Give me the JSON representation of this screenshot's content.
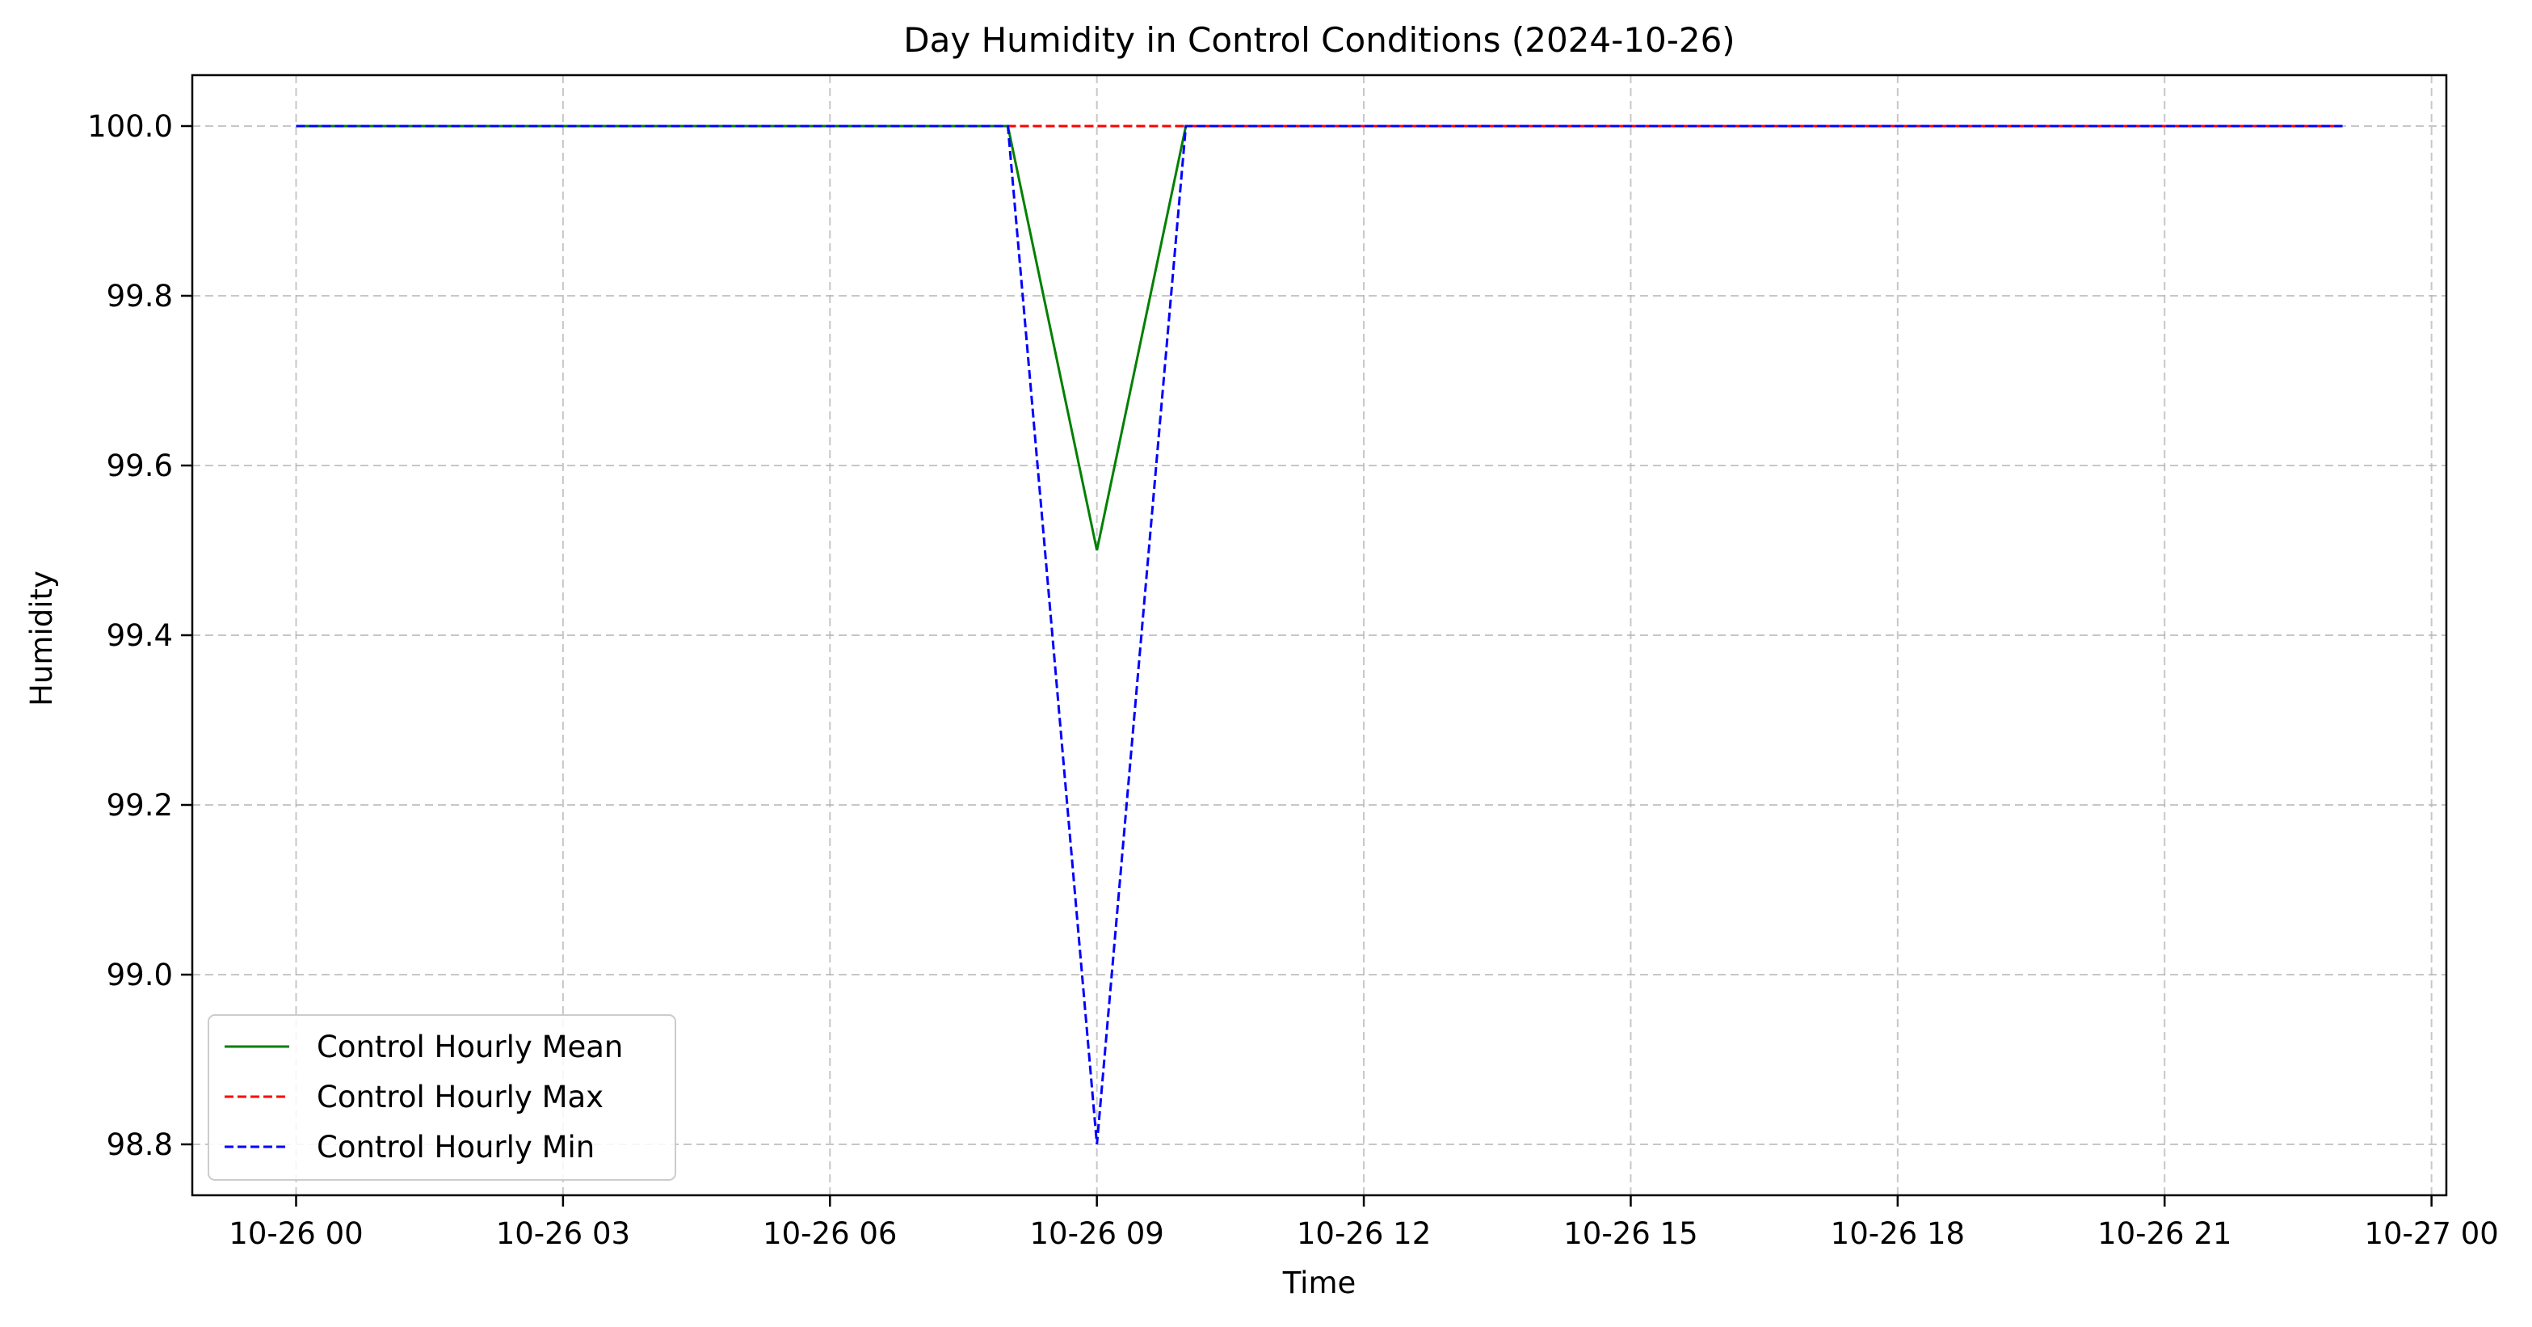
{
  "chart_data": {
    "type": "line",
    "title": "Day Humidity in Control Conditions (2024-10-26)",
    "xlabel": "Time",
    "ylabel": "Humidity",
    "x": [
      "2024-10-26 00:00",
      "2024-10-26 01:00",
      "2024-10-26 02:00",
      "2024-10-26 03:00",
      "2024-10-26 04:00",
      "2024-10-26 05:00",
      "2024-10-26 06:00",
      "2024-10-26 07:00",
      "2024-10-26 08:00",
      "2024-10-26 09:00",
      "2024-10-26 10:00",
      "2024-10-26 11:00",
      "2024-10-26 12:00",
      "2024-10-26 13:00",
      "2024-10-26 14:00",
      "2024-10-26 15:00",
      "2024-10-26 16:00",
      "2024-10-26 17:00",
      "2024-10-26 18:00",
      "2024-10-26 19:00",
      "2024-10-26 20:00",
      "2024-10-26 21:00",
      "2024-10-26 22:00",
      "2024-10-26 23:00"
    ],
    "xlim": [
      "2024-10-25 22:50",
      "2024-10-27 00:10"
    ],
    "ylim": [
      98.74,
      100.06
    ],
    "x_ticks": [
      "10-26 00",
      "10-26 03",
      "10-26 06",
      "10-26 09",
      "10-26 12",
      "10-26 15",
      "10-26 18",
      "10-26 21",
      "10-27 00"
    ],
    "y_ticks": [
      "98.8",
      "99.0",
      "99.2",
      "99.4",
      "99.6",
      "99.8",
      "100.0"
    ],
    "grid": true,
    "legend_position": "lower-left",
    "series": [
      {
        "name": "Control Hourly Mean",
        "color": "#008000",
        "style": "solid",
        "values": [
          100,
          100,
          100,
          100,
          100,
          100,
          100,
          100,
          100,
          99.5,
          100,
          100,
          100,
          100,
          100,
          100,
          100,
          100,
          100,
          100,
          100,
          100,
          100,
          100
        ]
      },
      {
        "name": "Control Hourly Max",
        "color": "#ff0000",
        "style": "dashed",
        "values": [
          100,
          100,
          100,
          100,
          100,
          100,
          100,
          100,
          100,
          100,
          100,
          100,
          100,
          100,
          100,
          100,
          100,
          100,
          100,
          100,
          100,
          100,
          100,
          100
        ]
      },
      {
        "name": "Control Hourly Min",
        "color": "#0000ff",
        "style": "dashed",
        "values": [
          100,
          100,
          100,
          100,
          100,
          100,
          100,
          100,
          100,
          98.8,
          100,
          100,
          100,
          100,
          100,
          100,
          100,
          100,
          100,
          100,
          100,
          100,
          100,
          100
        ]
      }
    ]
  }
}
